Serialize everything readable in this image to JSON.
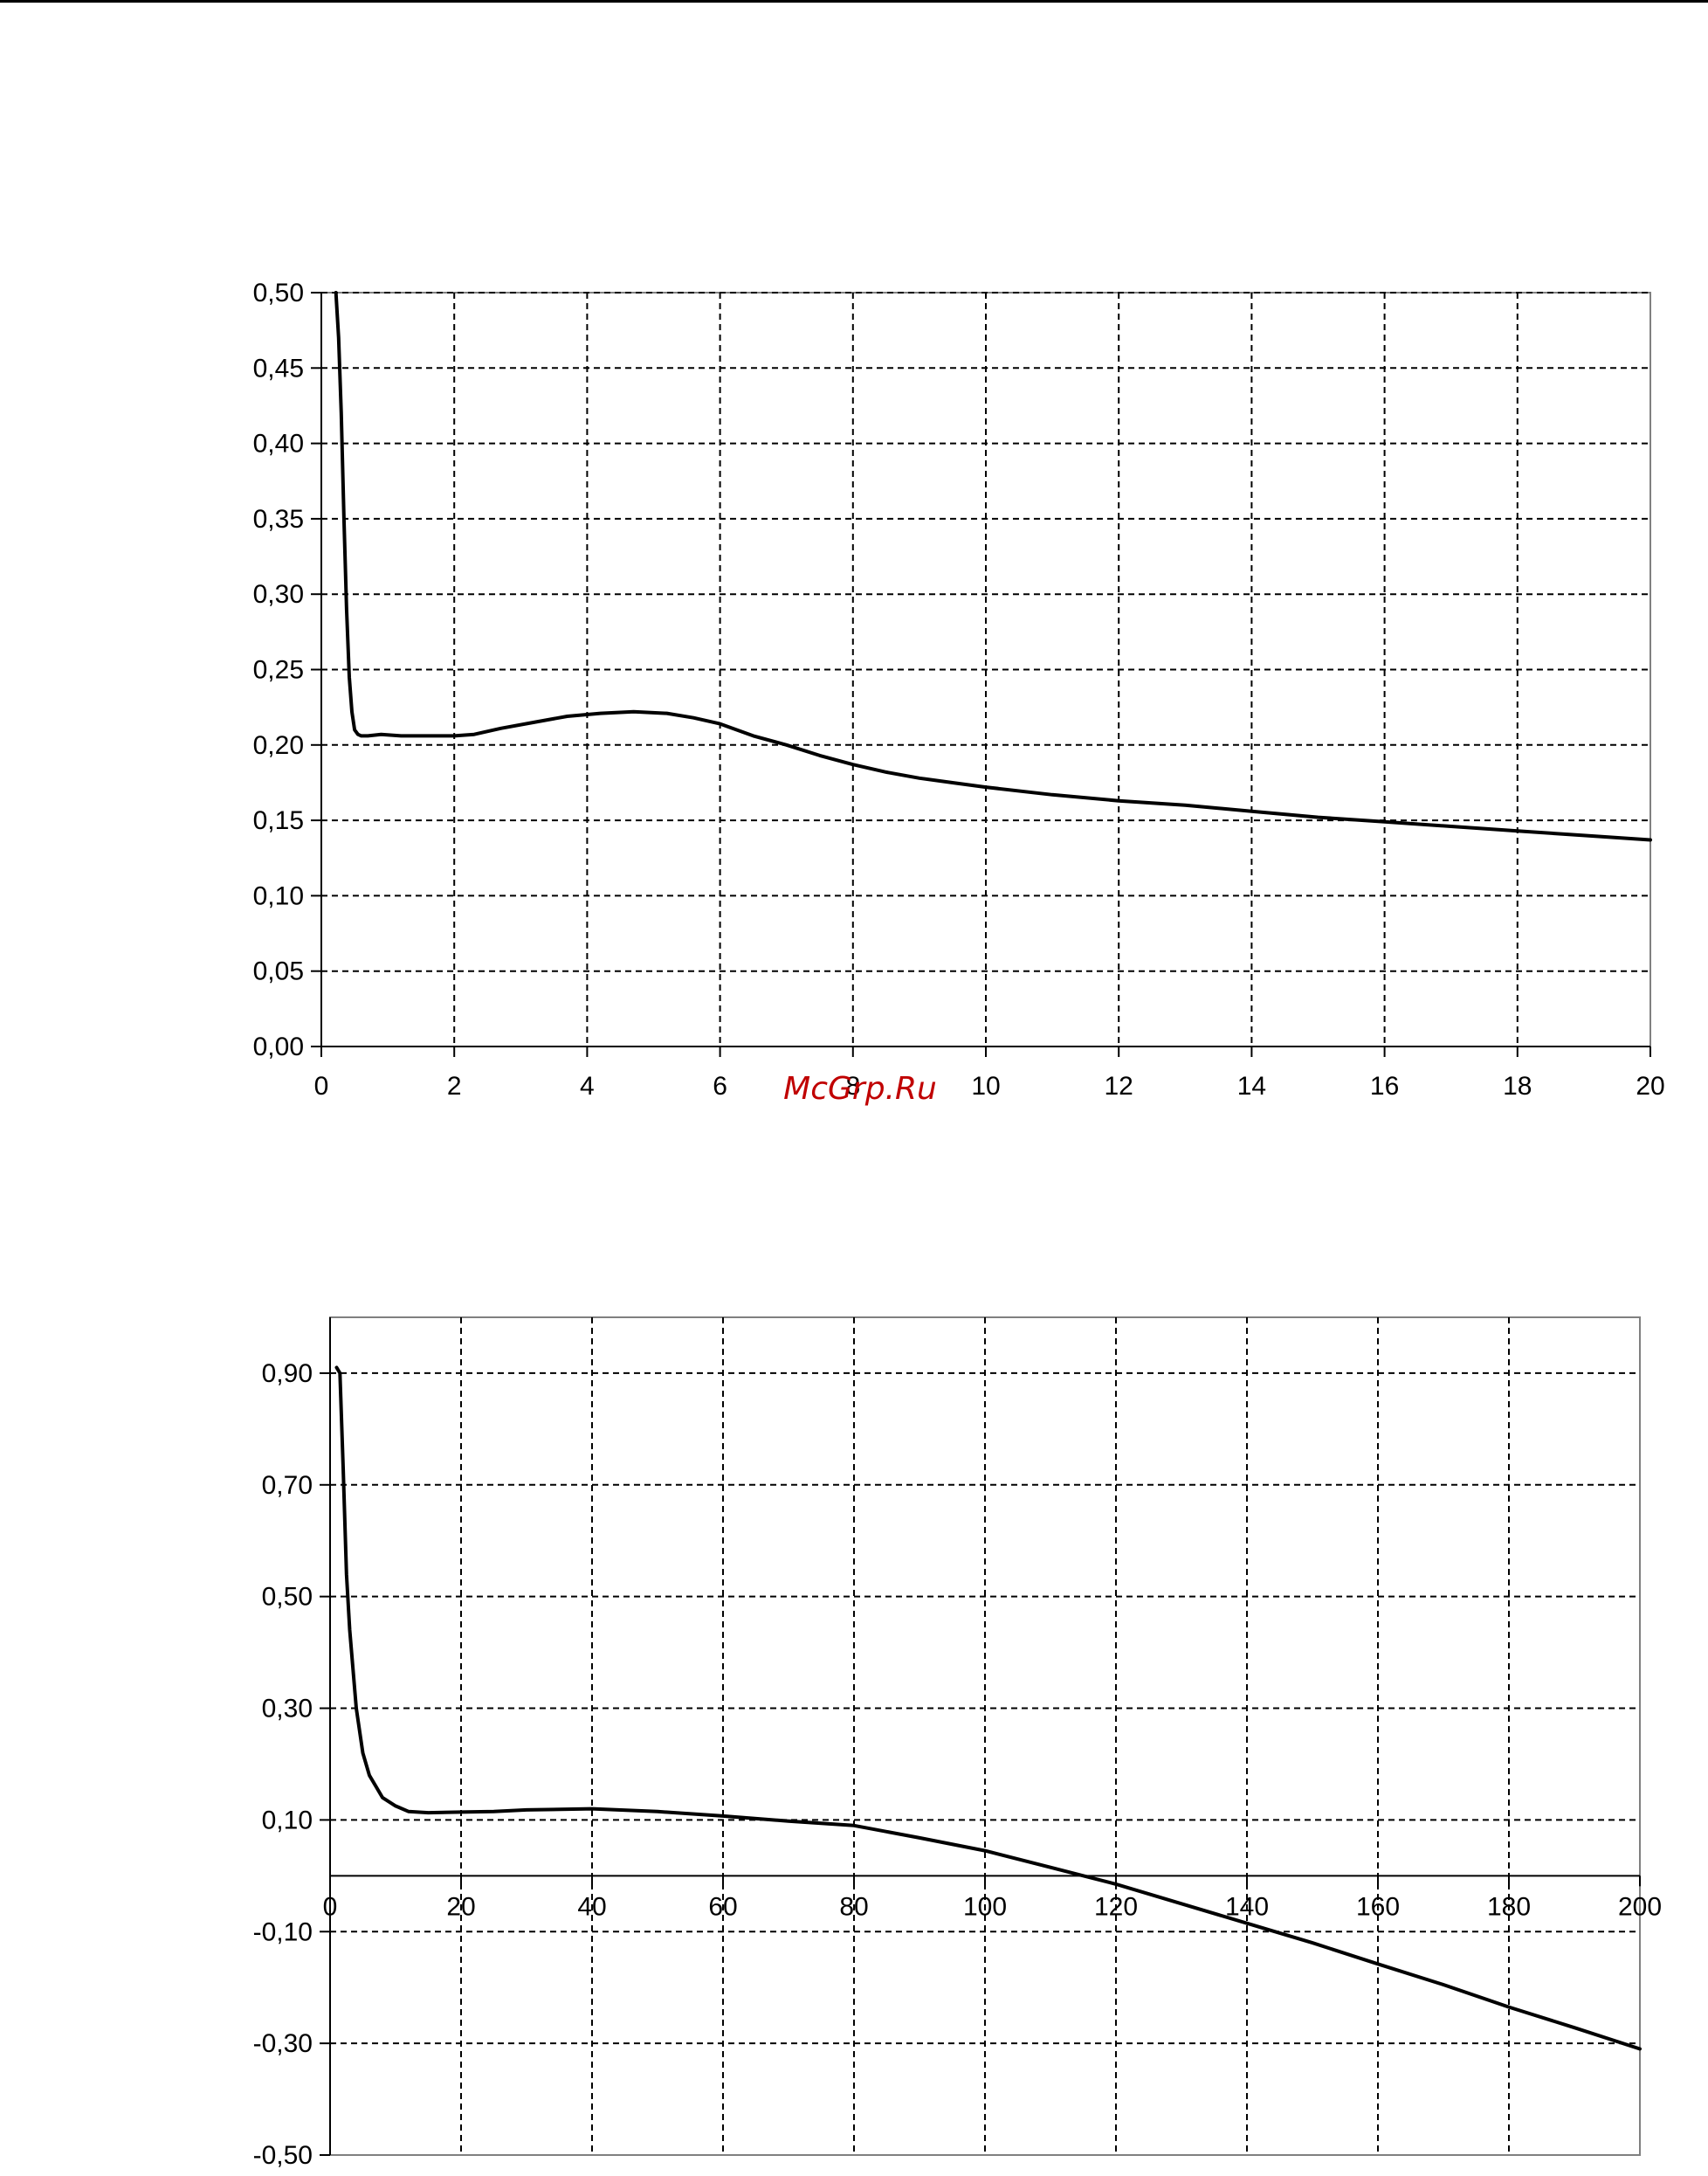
{
  "watermark": "McGrp.Ru",
  "chart_data": [
    {
      "type": "line",
      "title": "",
      "xlabel": "",
      "ylabel": "",
      "xlim": [
        0,
        20
      ],
      "ylim": [
        0,
        0.5
      ],
      "grid": true,
      "x_ticks": [
        "0",
        "2",
        "4",
        "6",
        "8",
        "10",
        "12",
        "14",
        "16",
        "18",
        "20"
      ],
      "y_ticks": [
        "0,00",
        "0,05",
        "0,10",
        "0,15",
        "0,20",
        "0,25",
        "0,30",
        "0,35",
        "0,40",
        "0,45",
        "0,50"
      ],
      "series": [
        {
          "x": [
            0.22,
            0.26,
            0.3,
            0.34,
            0.38,
            0.42,
            0.46,
            0.5,
            0.55,
            0.6,
            0.7,
            0.9,
            1.2,
            1.6,
            2.0,
            2.3,
            2.7,
            3.2,
            3.7,
            4.2,
            4.7,
            5.2,
            5.6,
            6.0,
            6.5,
            7.0,
            7.5,
            8.0,
            8.5,
            9.0,
            9.5,
            10.0,
            11.0,
            12.0,
            13.0,
            14.0,
            15.0,
            16.0,
            17.0,
            18.0,
            19.0,
            20.0
          ],
          "y": [
            0.5,
            0.47,
            0.42,
            0.35,
            0.29,
            0.245,
            0.222,
            0.21,
            0.207,
            0.206,
            0.206,
            0.207,
            0.206,
            0.206,
            0.206,
            0.207,
            0.211,
            0.215,
            0.219,
            0.221,
            0.222,
            0.221,
            0.218,
            0.214,
            0.206,
            0.2,
            0.193,
            0.187,
            0.182,
            0.178,
            0.175,
            0.172,
            0.167,
            0.163,
            0.16,
            0.156,
            0.152,
            0.149,
            0.146,
            0.143,
            0.14,
            0.137
          ]
        }
      ]
    },
    {
      "type": "line",
      "title": "",
      "xlabel": "",
      "ylabel": "",
      "xlim": [
        0,
        200
      ],
      "ylim": [
        -0.5,
        1.0
      ],
      "grid": true,
      "x_ticks": [
        "0",
        "20",
        "40",
        "60",
        "80",
        "100",
        "120",
        "140",
        "160",
        "180",
        "200"
      ],
      "y_ticks": [
        "-0,50",
        "-0,30",
        "-0,10",
        "0,10",
        "0,30",
        "0,50",
        "0,70",
        "0,90"
      ],
      "series": [
        {
          "x": [
            1.0,
            1.5,
            2.0,
            2.5,
            3.0,
            4.0,
            5.0,
            6.0,
            7.0,
            8.0,
            10.0,
            12.0,
            15.0,
            20.0,
            25.0,
            30.0,
            40.0,
            50.0,
            60.0,
            70.0,
            80.0,
            90.0,
            100.0,
            110.0,
            115.0,
            120.0,
            130.0,
            140.0,
            150.0,
            160.0,
            170.0,
            180.0,
            190.0,
            200.0
          ],
          "y": [
            0.91,
            0.9,
            0.73,
            0.54,
            0.44,
            0.3,
            0.22,
            0.18,
            0.16,
            0.14,
            0.125,
            0.115,
            0.113,
            0.114,
            0.115,
            0.118,
            0.12,
            0.115,
            0.107,
            0.098,
            0.09,
            0.068,
            0.045,
            0.015,
            0.0,
            -0.015,
            -0.05,
            -0.085,
            -0.12,
            -0.158,
            -0.195,
            -0.235,
            -0.272,
            -0.31
          ]
        }
      ]
    }
  ]
}
